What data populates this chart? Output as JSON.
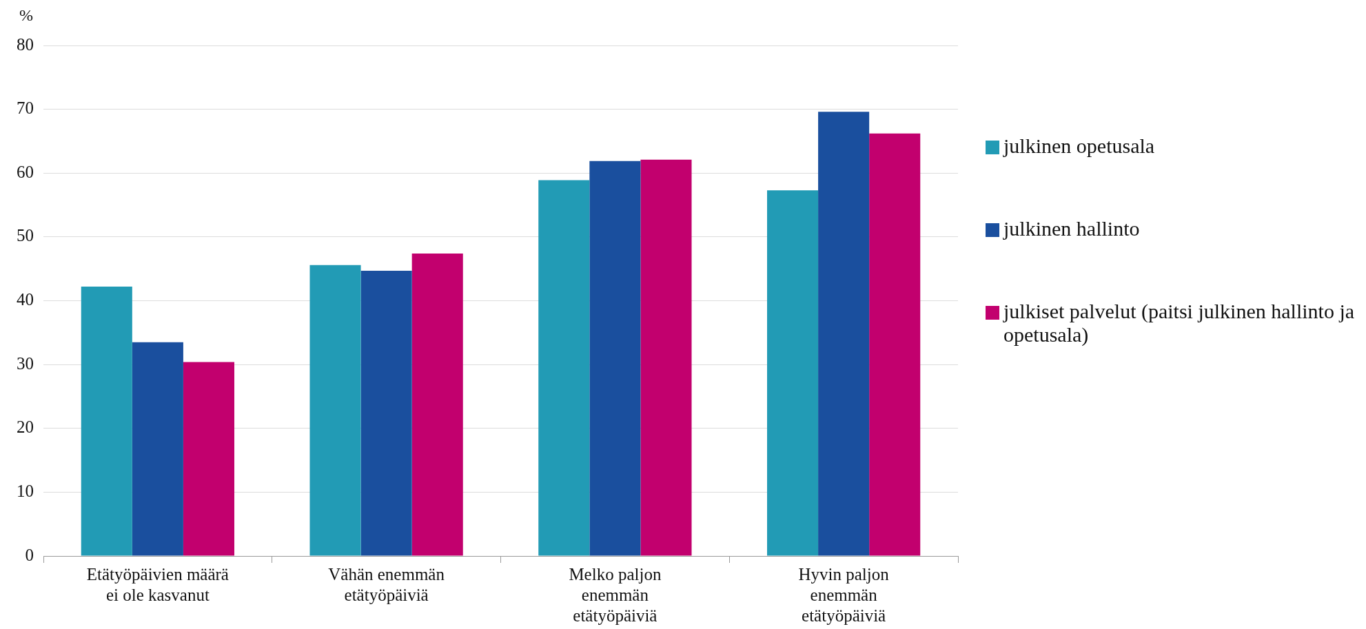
{
  "chart_data": {
    "type": "bar",
    "ylabel": "%",
    "categories": [
      "Etätyöpäivien määrä ei ole kasvanut",
      "Vähän enemmän etätyöpäiviä",
      "Melko paljon enemmän etätyöpäiviä",
      "Hyvin paljon enemmän etätyöpäiviä"
    ],
    "series": [
      {
        "name": "julkinen opetusala",
        "color": "#229bb5",
        "values": [
          42.2,
          45.6,
          58.9,
          57.3
        ]
      },
      {
        "name": "julkinen hallinto",
        "color": "#1a4f9e",
        "values": [
          33.5,
          44.7,
          61.9,
          69.6
        ]
      },
      {
        "name": "julkiset palvelut (paitsi julkinen hallinto ja opetusala)",
        "color": "#c2006e",
        "values": [
          30.4,
          47.4,
          62.1,
          66.2
        ]
      }
    ],
    "ylim": [
      0,
      80
    ],
    "yticks": [
      0,
      10,
      20,
      30,
      40,
      50,
      60,
      70,
      80
    ],
    "grid": "y",
    "legend": "right"
  }
}
